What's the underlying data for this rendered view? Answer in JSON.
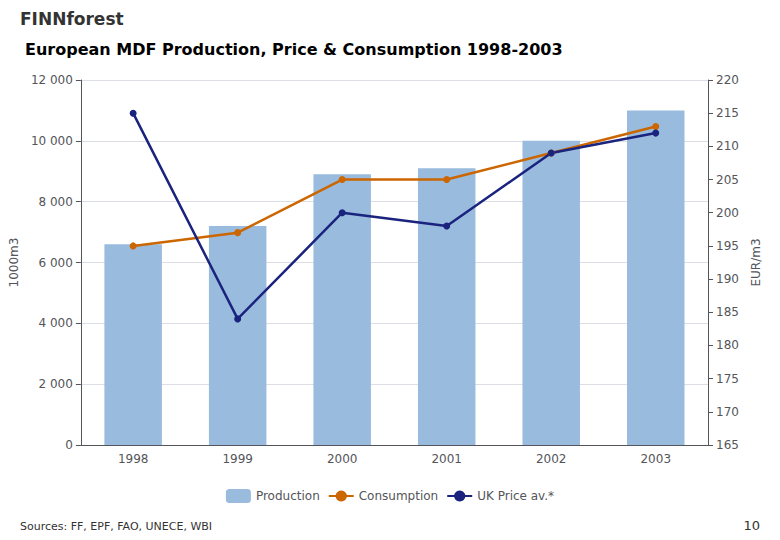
{
  "chart_data": {
    "type": "bar",
    "title": "European MDF Production, Price & Consumption 1998-2003",
    "categories": [
      "1998",
      "1999",
      "2000",
      "2001",
      "2002",
      "2003"
    ],
    "series": [
      {
        "name": "Production",
        "type": "bar",
        "color": "#99BBDD",
        "values": [
          6600,
          7200,
          8900,
          9100,
          10000,
          11000
        ]
      },
      {
        "name": "Consumption",
        "type": "line",
        "axis": "y2",
        "color": "#CC6600",
        "marker": "circle",
        "values": [
          195,
          197,
          205,
          205,
          209,
          213
        ]
      },
      {
        "name": "UK Price av.*",
        "type": "line",
        "axis": "y2",
        "color": "#1A237E",
        "marker": "circle",
        "values": [
          215,
          184,
          200,
          198,
          209,
          212
        ]
      }
    ],
    "ylabel": "1000m3",
    "y2label": "EUR/m3",
    "ylim": [
      0,
      12000
    ],
    "yticks": [
      0,
      {
        "value": 2000,
        "label": "2 000"
      },
      {
        "value": 4000,
        "label": "4 000"
      },
      {
        "value": 6000,
        "label": "6 000"
      },
      {
        "value": 8000,
        "label": "8 000"
      },
      {
        "value": 10000,
        "label": "10 000"
      },
      {
        "value": 12000,
        "label": "12 000"
      }
    ],
    "y2lim": [
      165,
      220
    ],
    "y2ticks": [
      165,
      170,
      175,
      180,
      185,
      190,
      195,
      200,
      205,
      210,
      215,
      220
    ],
    "grid": true,
    "legend": "bottom",
    "annotations": [
      "FINNforest",
      "Sources: FF, EPF, FAO, UNECE, WBI",
      "10"
    ]
  }
}
